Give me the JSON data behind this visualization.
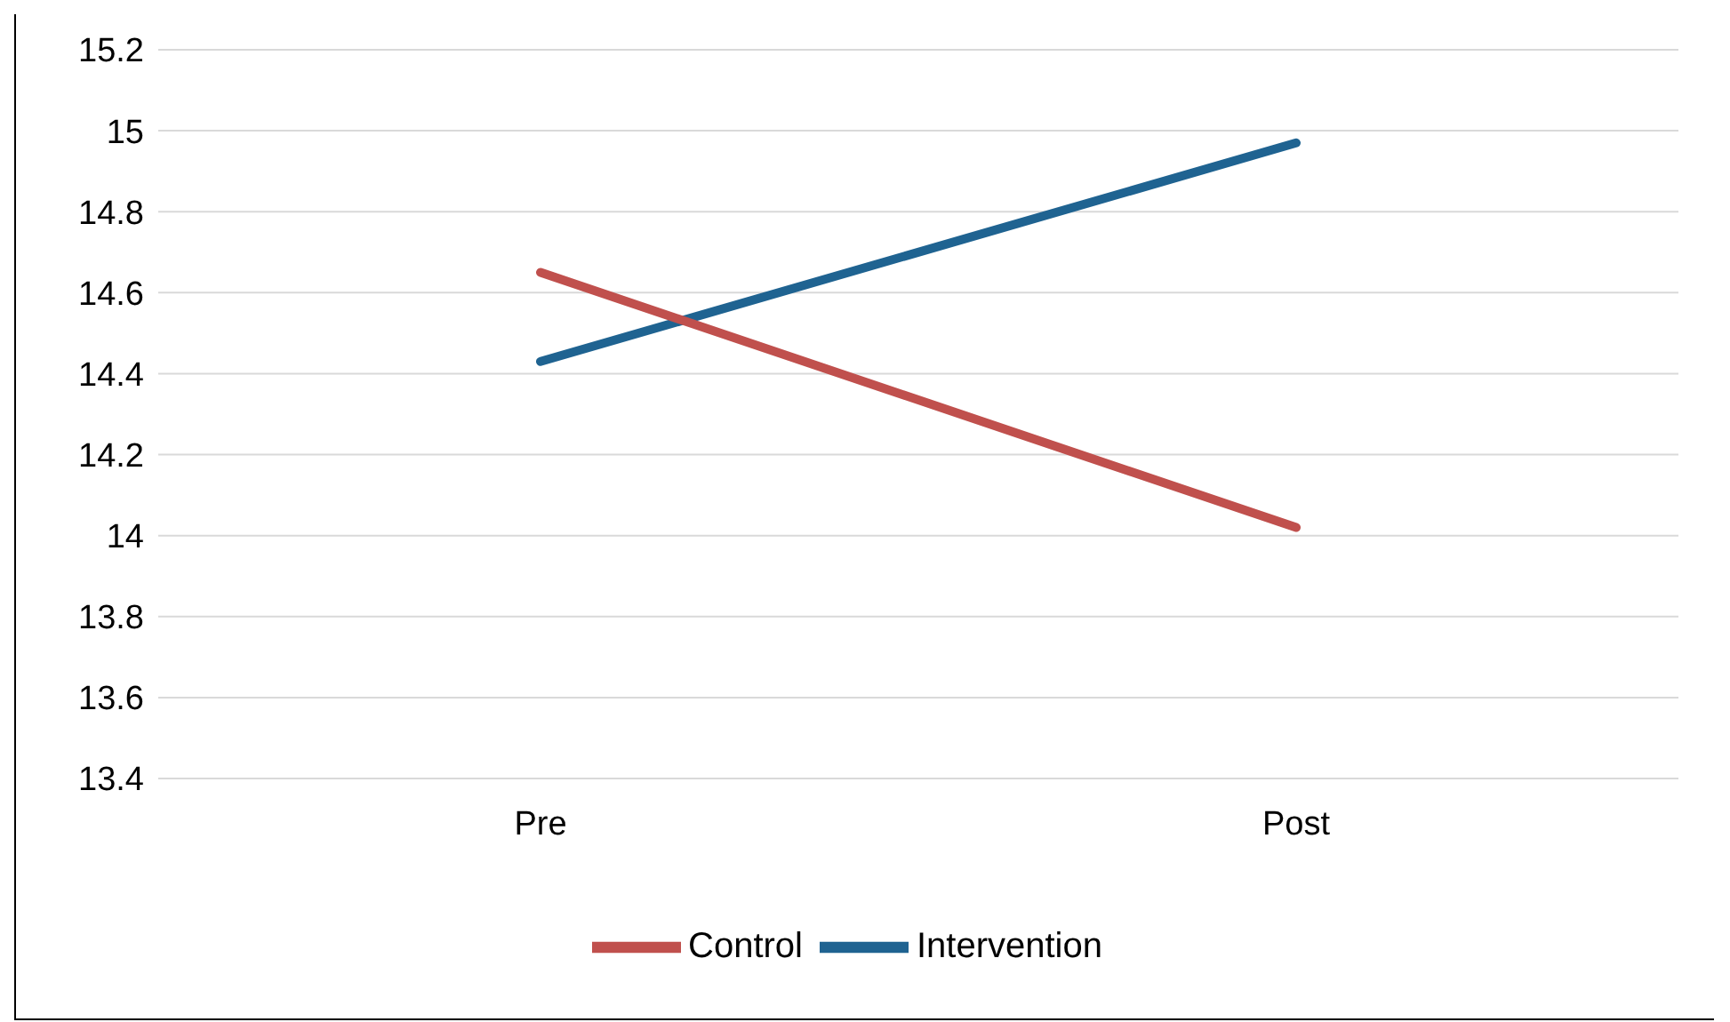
{
  "chart_data": {
    "type": "line",
    "categories": [
      "Pre",
      "Post"
    ],
    "series": [
      {
        "name": "Intervention",
        "color": "#1f6391",
        "values": [
          14.43,
          14.97
        ]
      },
      {
        "name": "Control",
        "color": "#c0504d",
        "values": [
          14.65,
          14.02
        ]
      }
    ],
    "ylim": [
      13.4,
      15.2
    ],
    "yticks": [
      13.4,
      13.6,
      13.8,
      14,
      14.2,
      14.4,
      14.6,
      14.8,
      15,
      15.2
    ],
    "grid": "y",
    "legend": "bottom",
    "marker": "none",
    "line_style": "solid"
  }
}
